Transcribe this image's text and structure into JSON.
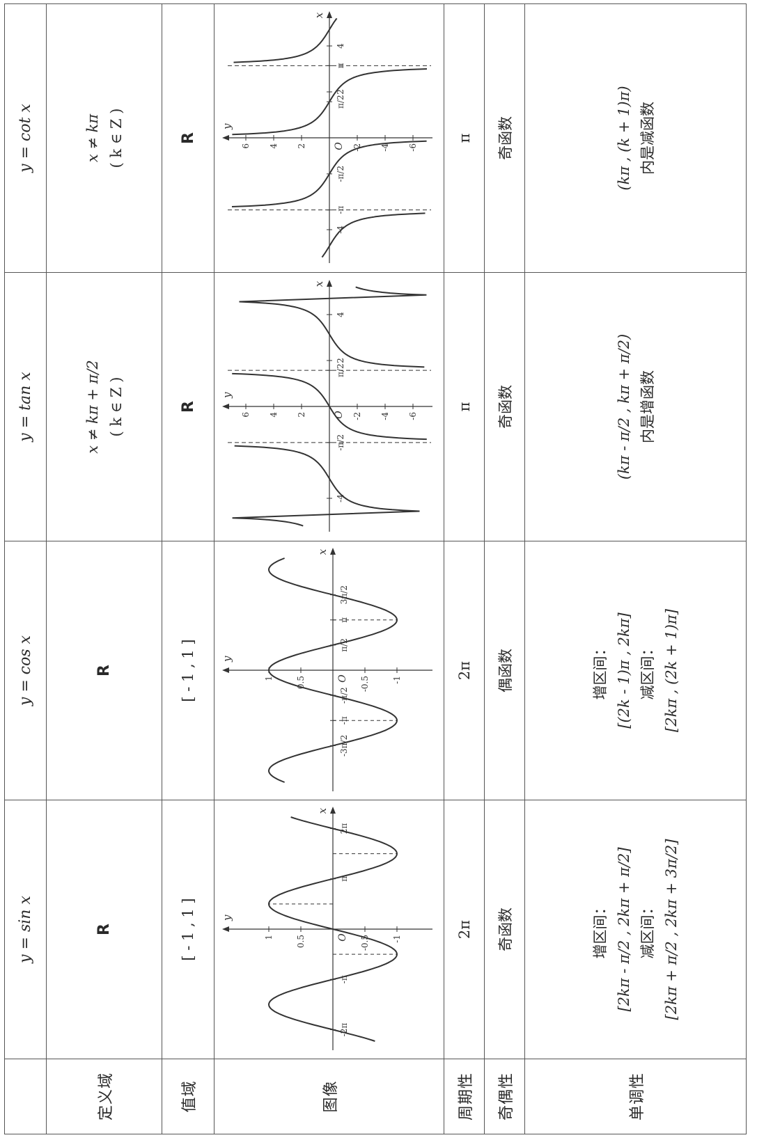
{
  "table": {
    "blank_corner": "",
    "row_labels": {
      "domain": "定义域",
      "range": "值域",
      "graph": "图像",
      "period": "周期性",
      "parity": "奇偶性",
      "monotonic": "单调性"
    },
    "columns": [
      {
        "title": "y = sin x",
        "domain": "R",
        "range": "[ - 1 , 1 ]",
        "period": "2π",
        "parity": "奇函数",
        "mono": [
          "增区间：",
          "[2kπ - π/2 , 2kπ + π/2]",
          "减区间：",
          "[2kπ + π/2 , 2kπ + 3π/2]"
        ]
      },
      {
        "title": "y = cos x",
        "domain": "R",
        "range": "[ - 1 , 1 ]",
        "period": "2π",
        "parity": "偶函数",
        "mono": [
          "增区间：",
          "[(2k - 1)π , 2kπ]",
          "减区间：",
          "[2kπ , (2k + 1)π]"
        ]
      },
      {
        "title": "y = tan x",
        "domain": [
          "x ≠ kπ + π/2",
          "( k ∈ Z )"
        ],
        "range": "R",
        "period": "π",
        "parity": "奇函数",
        "mono": [
          "(kπ - π/2 , kπ + π/2)",
          "内是增函数"
        ]
      },
      {
        "title": "y = cot x",
        "domain": [
          "x ≠ kπ",
          "( k ∈ Z )"
        ],
        "range": "R",
        "period": "π",
        "parity": "奇函数",
        "mono": [
          "(kπ , (k + 1)π)",
          "内是减函数"
        ]
      }
    ]
  },
  "graphs": {
    "sin": {
      "axis_x": "x",
      "axis_y": "y",
      "origin": "O",
      "x_ticks": [
        {
          "v": -6.2832,
          "label": "-2π"
        },
        {
          "v": -3.1416,
          "label": "-π"
        },
        {
          "v": 3.1416,
          "label": "π"
        },
        {
          "v": 6.2832,
          "label": "2π"
        }
      ],
      "y_ticks": [
        {
          "v": 1,
          "label": "1"
        },
        {
          "v": 0.5,
          "label": "0.5"
        },
        {
          "v": -0.5,
          "label": "-0.5"
        },
        {
          "v": -1,
          "label": "-1"
        }
      ]
    },
    "cos": {
      "axis_x": "x",
      "axis_y": "y",
      "origin": "O",
      "x_ticks": [
        {
          "v": -4.7124,
          "label": "-3π/2"
        },
        {
          "v": -3.1416,
          "label": "-π"
        },
        {
          "v": -1.5708,
          "label": "-π/2"
        },
        {
          "v": 1.5708,
          "label": "π/2"
        },
        {
          "v": 3.1416,
          "label": "π"
        },
        {
          "v": 4.7124,
          "label": "3π/2"
        }
      ],
      "y_ticks": [
        {
          "v": 1,
          "label": "1"
        },
        {
          "v": 0.5,
          "label": "0.5"
        },
        {
          "v": -0.5,
          "label": "-0.5"
        },
        {
          "v": -1,
          "label": "-1"
        }
      ]
    },
    "tan": {
      "axis_x": "x",
      "axis_y": "y",
      "origin": "O",
      "x_ticks": [
        {
          "v": -4,
          "label": "-4"
        },
        {
          "v": -1.5708,
          "label": "-π/2"
        },
        {
          "v": 1.5708,
          "label": "π/2"
        },
        {
          "v": 2,
          "label": "2"
        },
        {
          "v": 4,
          "label": "4"
        }
      ],
      "y_ticks": [
        {
          "v": 6,
          "label": "6"
        },
        {
          "v": 4,
          "label": "4"
        },
        {
          "v": 2,
          "label": "2"
        },
        {
          "v": -2,
          "label": "-2"
        },
        {
          "v": -4,
          "label": "-4"
        },
        {
          "v": -6,
          "label": "-6"
        }
      ]
    },
    "cot": {
      "axis_x": "x",
      "axis_y": "y",
      "origin": "O",
      "x_ticks": [
        {
          "v": -4,
          "label": "-4"
        },
        {
          "v": -3.1416,
          "label": "-π"
        },
        {
          "v": -1.5708,
          "label": "-π/2"
        },
        {
          "v": 1.5708,
          "label": "π/2"
        },
        {
          "v": 2,
          "label": "2"
        },
        {
          "v": 3.1416,
          "label": "π"
        },
        {
          "v": 4,
          "label": "4"
        }
      ],
      "y_ticks": [
        {
          "v": 6,
          "label": "6"
        },
        {
          "v": 4,
          "label": "4"
        },
        {
          "v": 2,
          "label": "2"
        },
        {
          "v": -2,
          "label": "-2"
        },
        {
          "v": -4,
          "label": "-4"
        },
        {
          "v": -6,
          "label": "-6"
        }
      ]
    }
  }
}
